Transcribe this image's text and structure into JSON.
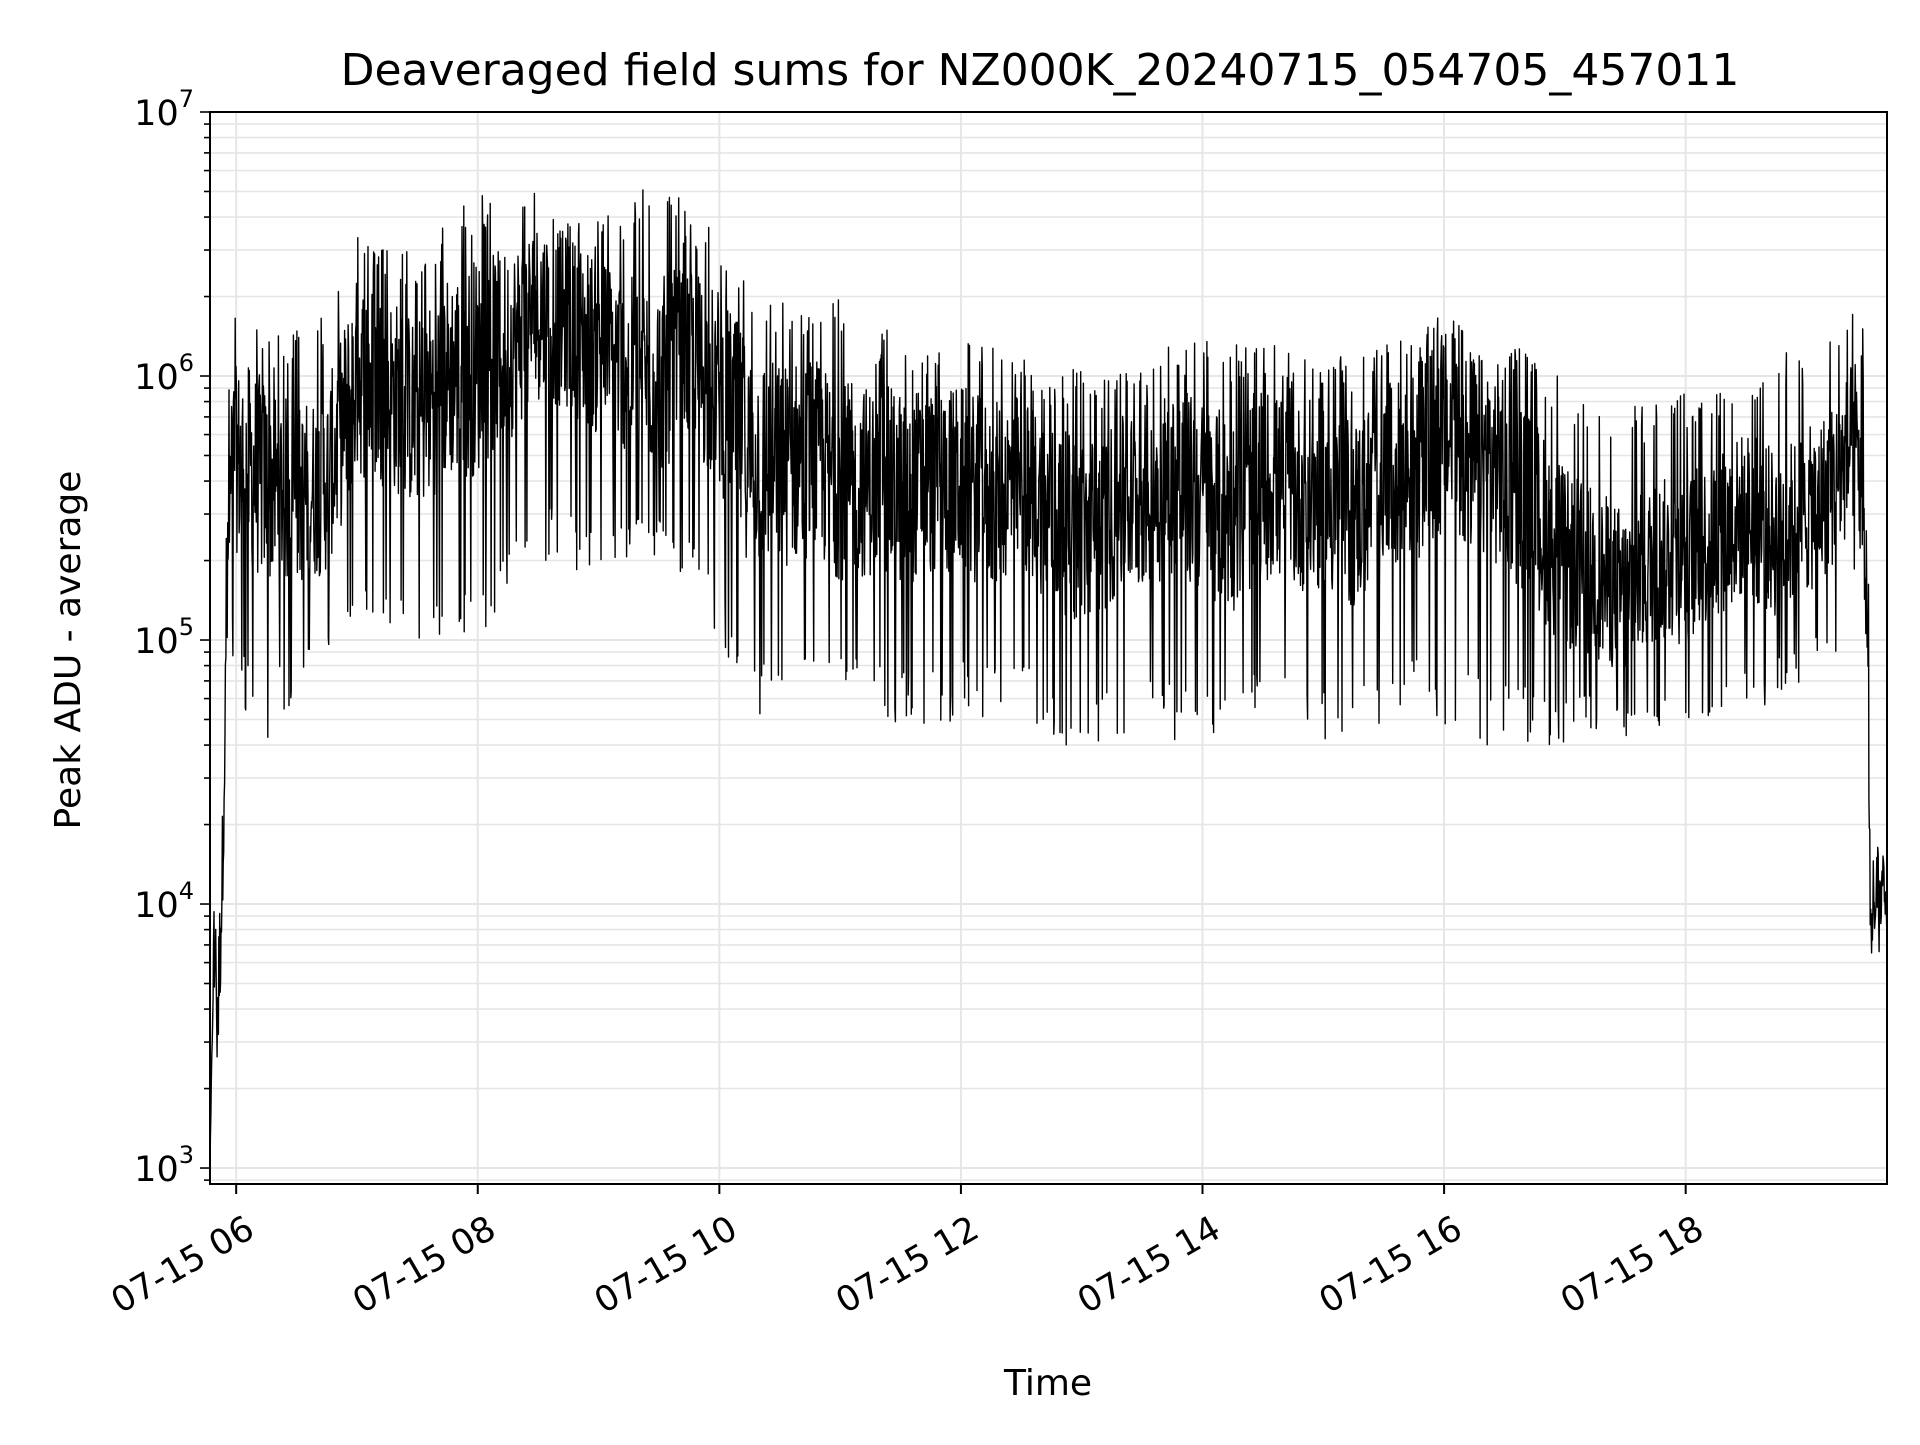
{
  "chart_data": {
    "type": "line",
    "title": "Deaveraged field sums for NZ000K_20240715_054705_457011",
    "xlabel": "Time",
    "ylabel": "Peak ADU - average",
    "y_scale": "log",
    "ylim": [
      870,
      10000000
    ],
    "xlim": [
      "2024-07-15T05:47:00",
      "2024-07-15T19:40:00"
    ],
    "grid": true,
    "line_color": "#000000",
    "grid_color": "#e6e6e6",
    "x_ticks": [
      {
        "value": "2024-07-15T06:00",
        "label": "07-15 06"
      },
      {
        "value": "2024-07-15T08:00",
        "label": "07-15 08"
      },
      {
        "value": "2024-07-15T10:00",
        "label": "07-15 10"
      },
      {
        "value": "2024-07-15T12:00",
        "label": "07-15 12"
      },
      {
        "value": "2024-07-15T14:00",
        "label": "07-15 14"
      },
      {
        "value": "2024-07-15T16:00",
        "label": "07-15 16"
      },
      {
        "value": "2024-07-15T18:00",
        "label": "07-15 18"
      }
    ],
    "y_ticks": [
      {
        "value": 1000,
        "base": "10",
        "exp": "3"
      },
      {
        "value": 10000,
        "base": "10",
        "exp": "4"
      },
      {
        "value": 100000,
        "base": "10",
        "exp": "5"
      },
      {
        "value": 1000000,
        "base": "10",
        "exp": "6"
      },
      {
        "value": 10000000,
        "base": "10",
        "exp": "7"
      }
    ],
    "series": [
      {
        "x": [
          "2024-07-15T05:47",
          "2024-07-15T05:49",
          "2024-07-15T05:51",
          "2024-07-15T05:53",
          "2024-07-15T05:54",
          "2024-07-15T05:56",
          "2024-07-15T05:58",
          "2024-07-15T06:05",
          "2024-07-15T06:15",
          "2024-07-15T06:30",
          "2024-07-15T06:45",
          "2024-07-15T07:00",
          "2024-07-15T07:15",
          "2024-07-15T07:30",
          "2024-07-15T07:45",
          "2024-07-15T08:00",
          "2024-07-15T08:15",
          "2024-07-15T08:30",
          "2024-07-15T08:45",
          "2024-07-15T09:00",
          "2024-07-15T09:15",
          "2024-07-15T09:30",
          "2024-07-15T09:45",
          "2024-07-15T10:00",
          "2024-07-15T10:15",
          "2024-07-15T10:30",
          "2024-07-15T10:45",
          "2024-07-15T11:00",
          "2024-07-15T11:15",
          "2024-07-15T11:30",
          "2024-07-15T11:45",
          "2024-07-15T12:00",
          "2024-07-15T12:15",
          "2024-07-15T12:30",
          "2024-07-15T12:45",
          "2024-07-15T13:00",
          "2024-07-15T13:15",
          "2024-07-15T13:30",
          "2024-07-15T13:45",
          "2024-07-15T14:00",
          "2024-07-15T14:15",
          "2024-07-15T14:30",
          "2024-07-15T14:45",
          "2024-07-15T15:00",
          "2024-07-15T15:15",
          "2024-07-15T15:30",
          "2024-07-15T15:45",
          "2024-07-15T16:00",
          "2024-07-15T16:15",
          "2024-07-15T16:30",
          "2024-07-15T16:45",
          "2024-07-15T17:00",
          "2024-07-15T17:15",
          "2024-07-15T17:30",
          "2024-07-15T17:45",
          "2024-07-15T18:00",
          "2024-07-15T18:15",
          "2024-07-15T18:30",
          "2024-07-15T18:45",
          "2024-07-15T19:00",
          "2024-07-15T19:15",
          "2024-07-15T19:25",
          "2024-07-15T19:30",
          "2024-07-15T19:32",
          "2024-07-15T19:34",
          "2024-07-15T19:36",
          "2024-07-15T19:38",
          "2024-07-15T19:40"
        ],
        "y": [
          1000,
          8000,
          4000,
          12000,
          30000,
          200000,
          500000,
          450000,
          400000,
          350000,
          400000,
          1000000,
          900000,
          700000,
          1000000,
          1100000,
          1300000,
          1800000,
          1600000,
          1300000,
          1100000,
          1000000,
          1200000,
          900000,
          500000,
          450000,
          500000,
          400000,
          400000,
          380000,
          400000,
          400000,
          350000,
          400000,
          300000,
          250000,
          300000,
          350000,
          400000,
          350000,
          300000,
          400000,
          350000,
          350000,
          300000,
          400000,
          450000,
          600000,
          500000,
          450000,
          300000,
          200000,
          180000,
          150000,
          200000,
          200000,
          250000,
          300000,
          250000,
          300000,
          400000,
          600000,
          150000,
          8000,
          9000,
          10000,
          12000,
          8000
        ],
        "envelope_max": [
          1000,
          15000,
          20000,
          25000,
          60000,
          1000000,
          1800000,
          2000000,
          1500000,
          1500000,
          1800000,
          3500000,
          3000000,
          3000000,
          4000000,
          5000000,
          4500000,
          5000000,
          4500000,
          4000000,
          4500000,
          6500000,
          4000000,
          3500000,
          2500000,
          2000000,
          1800000,
          2000000,
          1500000,
          1500000,
          1300000,
          1500000,
          1300000,
          1200000,
          1000000,
          1100000,
          1000000,
          1200000,
          1300000,
          1400000,
          1300000,
          1400000,
          1200000,
          1300000,
          1200000,
          1300000,
          1400000,
          1800000,
          1600000,
          1500000,
          1200000,
          1000000,
          900000,
          800000,
          800000,
          900000,
          900000,
          1000000,
          1200000,
          1300000,
          1500000,
          2800000,
          1000000,
          15000,
          16000,
          18000,
          17000,
          15000
        ],
        "envelope_min": [
          1000,
          5000,
          2000,
          3000,
          10000,
          80000,
          80000,
          50000,
          40000,
          60000,
          70000,
          100000,
          90000,
          100000,
          100000,
          100000,
          150000,
          200000,
          200000,
          150000,
          200000,
          200000,
          150000,
          100000,
          50000,
          50000,
          50000,
          60000,
          50000,
          45000,
          45000,
          50000,
          50000,
          50000,
          40000,
          40000,
          40000,
          45000,
          40000,
          45000,
          40000,
          45000,
          45000,
          40000,
          40000,
          45000,
          50000,
          45000,
          40000,
          40000,
          40000,
          40000,
          45000,
          40000,
          45000,
          45000,
          50000,
          50000,
          60000,
          70000,
          80000,
          150000,
          60000,
          5000,
          5000,
          6000,
          6000,
          7000
        ]
      }
    ]
  }
}
